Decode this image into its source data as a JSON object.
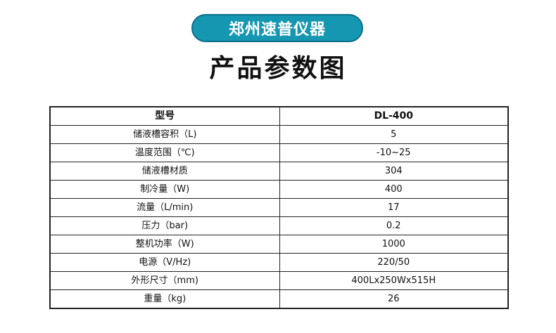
{
  "brand": {
    "label": "郑州速普仪器",
    "color": "#1597b2"
  },
  "title": "产品参数图",
  "table": {
    "header": {
      "label": "型号",
      "value": "DL-400"
    },
    "rows": [
      {
        "label": "储液槽容积（L)",
        "value": "5"
      },
      {
        "label": "温度范围（℃)",
        "value": "-10~25"
      },
      {
        "label": "储液槽材质",
        "value": "304"
      },
      {
        "label": "制冷量（W)",
        "value": "400"
      },
      {
        "label": "流量（L/min)",
        "value": "17"
      },
      {
        "label": "压力（bar)",
        "value": "0.2"
      },
      {
        "label": "整机功率（W)",
        "value": "1000"
      },
      {
        "label": "电源（V/Hz)",
        "value": "220/50"
      },
      {
        "label": "外形尺寸（mm)",
        "value": "400Lx250Wx515H"
      },
      {
        "label": "重量（kg)",
        "value": "26"
      }
    ]
  }
}
